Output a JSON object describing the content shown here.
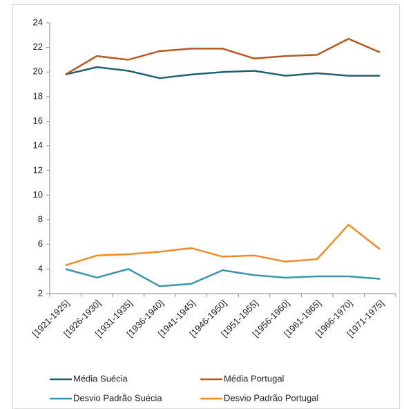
{
  "chart_data": {
    "type": "line",
    "categories": [
      "[1921-1925]",
      "[1926-1930]",
      "[1931-1935]",
      "[1936-1940]",
      "[1941-1945]",
      "[1946-1950]",
      "[1951-1955]",
      "[1956-1960]",
      "[1961-1965]",
      "[1966-1970]",
      "[1971-1975]"
    ],
    "series": [
      {
        "name": "Média Suécia",
        "color": "#1f5f73",
        "values": [
          19.8,
          20.4,
          20.1,
          19.5,
          19.8,
          20.0,
          20.1,
          19.7,
          19.9,
          19.7,
          19.7
        ]
      },
      {
        "name": "Média Portugal",
        "color": "#b5581b",
        "values": [
          19.8,
          21.3,
          21.0,
          21.7,
          21.9,
          21.9,
          21.1,
          21.3,
          21.4,
          22.7,
          21.6
        ]
      },
      {
        "name": "Desvio Padrão Suécia",
        "color": "#3a95aa",
        "values": [
          4.0,
          3.3,
          4.0,
          2.6,
          2.8,
          3.9,
          3.5,
          3.3,
          3.4,
          3.4,
          3.2
        ]
      },
      {
        "name": "Desvio Padrão Portugal",
        "color": "#f28a24",
        "values": [
          4.3,
          5.1,
          5.2,
          5.4,
          5.7,
          5.0,
          5.1,
          4.6,
          4.8,
          7.6,
          5.6
        ]
      }
    ],
    "ylim": [
      2,
      24
    ],
    "yticks": [
      2,
      4,
      6,
      8,
      10,
      12,
      14,
      16,
      18,
      20,
      22,
      24
    ],
    "grid": false,
    "legend": "bottom"
  }
}
